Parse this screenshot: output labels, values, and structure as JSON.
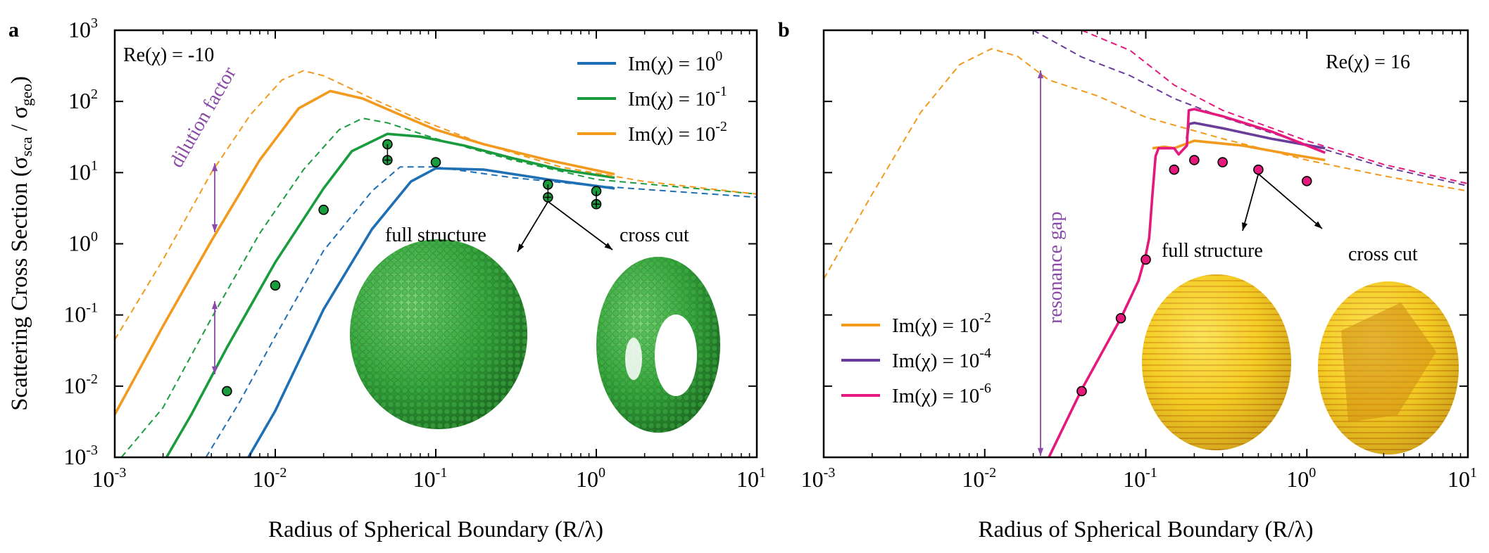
{
  "figure": {
    "y_axis_label_main": "Scattering Cross Section (σ",
    "y_axis_label_sub1": "sca",
    "y_axis_label_mid": " / σ",
    "y_axis_label_sub2": "geo",
    "y_axis_label_end": ")"
  },
  "chart_data": [
    {
      "panel": "a",
      "type": "line",
      "xscale": "log",
      "yscale": "log",
      "xlim": [
        0.001,
        10
      ],
      "ylim": [
        0.001,
        1000
      ],
      "xlabel": "Radius of Spherical Boundary (R/λ)",
      "ylabel": "Scattering Cross Section (σsca / σgeo)",
      "x_ticks": [
        0.001,
        0.01,
        0.1,
        1,
        10
      ],
      "y_ticks": [
        0.001,
        0.01,
        0.1,
        1,
        10,
        100,
        1000
      ],
      "x_tick_labels": [
        [
          "10",
          "-3"
        ],
        [
          "10",
          "-2"
        ],
        [
          "10",
          "-1"
        ],
        [
          "10",
          "0"
        ],
        [
          "10",
          "1"
        ]
      ],
      "y_tick_labels": [
        [
          "10",
          "-3"
        ],
        [
          "10",
          "-2"
        ],
        [
          "10",
          "-1"
        ],
        [
          "10",
          "0"
        ],
        [
          "10",
          "1"
        ],
        [
          "10",
          "2"
        ],
        [
          "10",
          "3"
        ]
      ],
      "annotation_re": "Re(χ) = -10",
      "annotation_dilution": "dilution factor",
      "annotation_full": "full structure",
      "annotation_cut": "cross cut",
      "legend_position": "top-right",
      "series": [
        {
          "name": "Im(χ) = 10^0",
          "label_base": "Im(χ) = 10",
          "label_exp": "0",
          "color": "#1f6fb4",
          "style": "solid",
          "points": [
            [
              0.0068,
              0.001
            ],
            [
              0.01,
              0.0045
            ],
            [
              0.02,
              0.12
            ],
            [
              0.04,
              1.6
            ],
            [
              0.07,
              7.5
            ],
            [
              0.1,
              11.5
            ],
            [
              0.2,
              11.0
            ],
            [
              0.5,
              8.0
            ],
            [
              1.3,
              6.0
            ]
          ]
        },
        {
          "name": "Im(χ) = 10^0 (dashed)",
          "color": "#1f6fb4",
          "style": "dashed",
          "points": [
            [
              0.0037,
              0.001
            ],
            [
              0.006,
              0.006
            ],
            [
              0.01,
              0.05
            ],
            [
              0.02,
              0.8
            ],
            [
              0.04,
              5.5
            ],
            [
              0.06,
              12
            ],
            [
              0.1,
              12
            ],
            [
              0.3,
              8.5
            ],
            [
              1,
              6.5
            ],
            [
              10,
              4.5
            ]
          ]
        },
        {
          "name": "Im(χ) = 10^-1",
          "label_base": "Im(χ) = 10",
          "label_exp": "-1",
          "color": "#1a9c3e",
          "style": "solid",
          "points": [
            [
              0.0021,
              0.001
            ],
            [
              0.003,
              0.004
            ],
            [
              0.005,
              0.035
            ],
            [
              0.01,
              0.55
            ],
            [
              0.02,
              6
            ],
            [
              0.03,
              20
            ],
            [
              0.05,
              35
            ],
            [
              0.08,
              32
            ],
            [
              0.15,
              24
            ],
            [
              0.3,
              16
            ],
            [
              0.6,
              11
            ],
            [
              1.3,
              8.5
            ]
          ]
        },
        {
          "name": "Im(χ) = 10^-1 (dashed)",
          "color": "#1a9c3e",
          "style": "dashed",
          "points": [
            [
              0.0011,
              0.001
            ],
            [
              0.002,
              0.005
            ],
            [
              0.004,
              0.09
            ],
            [
              0.008,
              1.4
            ],
            [
              0.015,
              11
            ],
            [
              0.025,
              40
            ],
            [
              0.035,
              58
            ],
            [
              0.05,
              50
            ],
            [
              0.1,
              30
            ],
            [
              0.3,
              15
            ],
            [
              1,
              8
            ],
            [
              10,
              5
            ]
          ]
        },
        {
          "name": "Im(χ) = 10^-2",
          "label_base": "Im(χ) = 10",
          "label_exp": "-2",
          "color": "#f39a1e",
          "style": "solid",
          "points": [
            [
              0.001,
              0.004
            ],
            [
              0.002,
              0.07
            ],
            [
              0.004,
              1.1
            ],
            [
              0.008,
              15
            ],
            [
              0.014,
              80
            ],
            [
              0.022,
              140
            ],
            [
              0.035,
              110
            ],
            [
              0.06,
              65
            ],
            [
              0.1,
              40
            ],
            [
              0.2,
              25
            ],
            [
              0.5,
              15
            ],
            [
              1.3,
              9.5
            ]
          ]
        },
        {
          "name": "Im(χ) = 10^-2 (dashed)",
          "color": "#f39a1e",
          "style": "dashed",
          "points": [
            [
              0.001,
              0.045
            ],
            [
              0.002,
              0.6
            ],
            [
              0.004,
              10
            ],
            [
              0.007,
              65
            ],
            [
              0.011,
              200
            ],
            [
              0.015,
              270
            ],
            [
              0.02,
              230
            ],
            [
              0.04,
              110
            ],
            [
              0.08,
              55
            ],
            [
              0.2,
              25
            ],
            [
              0.6,
              12
            ],
            [
              2,
              7.5
            ],
            [
              10,
              5
            ]
          ]
        }
      ],
      "markers": [
        {
          "x": 0.005,
          "y": 0.0085
        },
        {
          "x": 0.01,
          "y": 0.26
        },
        {
          "x": 0.02,
          "y": 3.0
        },
        {
          "x": 0.05,
          "y": 25
        },
        {
          "x": 0.05,
          "y": 15,
          "error": true
        },
        {
          "x": 0.1,
          "y": 14
        },
        {
          "x": 0.5,
          "y": 6.8
        },
        {
          "x": 0.5,
          "y": 4.5,
          "error": true
        },
        {
          "x": 1.0,
          "y": 5.5
        },
        {
          "x": 1.0,
          "y": 3.6,
          "error": true
        }
      ],
      "marker_color": "#1a9c3e"
    },
    {
      "panel": "b",
      "type": "line",
      "xscale": "log",
      "yscale": "log",
      "xlim": [
        0.001,
        10
      ],
      "ylim": [
        0.001,
        1000
      ],
      "xlabel": "Radius of Spherical Boundary (R/λ)",
      "x_ticks": [
        0.001,
        0.01,
        0.1,
        1,
        10
      ],
      "x_tick_labels": [
        [
          "10",
          "-3"
        ],
        [
          "10",
          "-2"
        ],
        [
          "10",
          "-1"
        ],
        [
          "10",
          "0"
        ],
        [
          "10",
          "1"
        ]
      ],
      "annotation_re": "Re(χ) = 16",
      "annotation_gap": "resonance gap",
      "annotation_full": "full structure",
      "annotation_cut": "cross cut",
      "legend_position": "bottom-left",
      "series": [
        {
          "name": "Im(χ) = 10^-2",
          "label_base": "Im(χ) = 10",
          "label_exp": "-2",
          "color": "#f39a1e",
          "style": "solid",
          "points": [
            [
              0.11,
              22
            ],
            [
              0.13,
              23
            ],
            [
              0.15,
              22
            ],
            [
              0.2,
              28
            ],
            [
              0.4,
              24
            ],
            [
              0.8,
              18
            ],
            [
              1.3,
              15
            ]
          ]
        },
        {
          "name": "Im(χ) = 10^-2 (dashed)",
          "color": "#f39a1e",
          "style": "dashed",
          "points": [
            [
              0.001,
              0.32
            ],
            [
              0.002,
              5
            ],
            [
              0.004,
              70
            ],
            [
              0.007,
              330
            ],
            [
              0.011,
              550
            ],
            [
              0.016,
              430
            ],
            [
              0.025,
              200
            ],
            [
              0.05,
              120
            ],
            [
              0.1,
              60
            ],
            [
              0.3,
              30
            ],
            [
              1,
              15
            ],
            [
              3,
              9
            ],
            [
              10,
              5.5
            ]
          ]
        },
        {
          "name": "Im(χ) = 10^-4",
          "label_base": "Im(χ) = 10",
          "label_exp": "-4",
          "color": "#6a3d9a",
          "style": "solid",
          "points": [
            [
              0.18,
              30
            ],
            [
              0.185,
              48
            ],
            [
              0.2,
              50
            ],
            [
              0.3,
              42
            ],
            [
              0.6,
              30
            ],
            [
              1.3,
              22
            ]
          ]
        },
        {
          "name": "Im(χ) = 10^-4 (dashed)",
          "color": "#6a3d9a",
          "style": "dashed",
          "points": [
            [
              0.02,
              1000
            ],
            [
              0.04,
              420
            ],
            [
              0.08,
              230
            ],
            [
              0.15,
              110
            ],
            [
              0.3,
              60
            ],
            [
              1,
              25
            ],
            [
              3,
              12
            ],
            [
              10,
              6.5
            ]
          ]
        },
        {
          "name": "Im(χ) = 10^-6",
          "label_base": "Im(χ) = 10",
          "label_exp": "-6",
          "color": "#e5197d",
          "style": "solid",
          "points": [
            [
              0.025,
              0.001
            ],
            [
              0.04,
              0.009
            ],
            [
              0.07,
              0.09
            ],
            [
              0.09,
              0.3
            ],
            [
              0.1,
              0.7
            ],
            [
              0.105,
              1.2
            ],
            [
              0.11,
              5
            ],
            [
              0.115,
              17
            ],
            [
              0.12,
              22
            ],
            [
              0.15,
              22
            ],
            [
              0.16,
              18
            ],
            [
              0.18,
              24
            ],
            [
              0.185,
              75
            ],
            [
              0.2,
              78
            ],
            [
              0.3,
              62
            ],
            [
              0.6,
              38
            ],
            [
              1.3,
              19
            ]
          ]
        },
        {
          "name": "Im(χ) = 10^-6 (dashed)",
          "color": "#e5197d",
          "style": "dashed",
          "points": [
            [
              0.04,
              1000
            ],
            [
              0.08,
              520
            ],
            [
              0.15,
              170
            ],
            [
              0.3,
              75
            ],
            [
              1,
              28
            ],
            [
              3,
              13
            ],
            [
              10,
              7
            ]
          ]
        }
      ],
      "markers": [
        {
          "x": 0.04,
          "y": 0.0085
        },
        {
          "x": 0.07,
          "y": 0.09
        },
        {
          "x": 0.1,
          "y": 0.6
        },
        {
          "x": 0.15,
          "y": 11
        },
        {
          "x": 0.2,
          "y": 15
        },
        {
          "x": 0.3,
          "y": 14
        },
        {
          "x": 0.5,
          "y": 11
        },
        {
          "x": 1.0,
          "y": 7.6
        }
      ],
      "marker_color": "#e5197d"
    }
  ]
}
